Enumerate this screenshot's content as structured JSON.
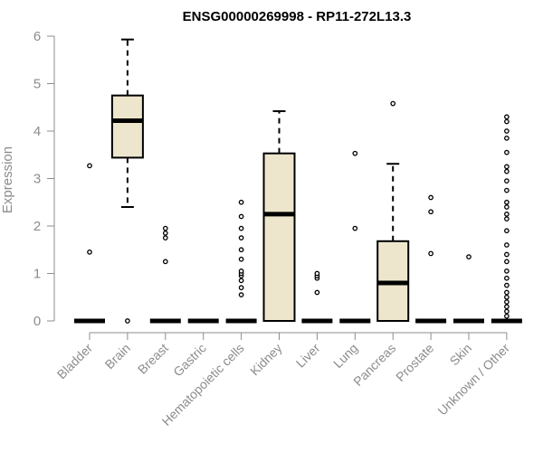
{
  "chart_data": {
    "type": "box",
    "title": "ENSG00000269998 - RP11-272L13.3",
    "xlabel": "",
    "ylabel": "Expression",
    "ylim": [
      0,
      6
    ],
    "yticks": [
      "0",
      "1",
      "2",
      "3",
      "4",
      "5",
      "6"
    ],
    "categories": [
      "Bladder",
      "Brain",
      "Breast",
      "Gastric",
      "Hematopoietic cells",
      "Kidney",
      "Liver",
      "Lung",
      "Pancreas",
      "Prostate",
      "Skin",
      "Unknown / Other"
    ],
    "boxes": [
      {
        "name": "Bladder",
        "min": 0,
        "q1": 0,
        "median": 0,
        "q3": 0,
        "max": 0,
        "outliers": [
          1.45,
          3.27
        ]
      },
      {
        "name": "Brain",
        "min": 2.4,
        "q1": 3.44,
        "median": 4.22,
        "q3": 4.75,
        "max": 5.93,
        "outliers": [
          0
        ]
      },
      {
        "name": "Breast",
        "min": 0,
        "q1": 0,
        "median": 0,
        "q3": 0,
        "max": 0,
        "outliers": [
          1.25,
          1.75,
          1.85,
          1.95
        ]
      },
      {
        "name": "Gastric",
        "min": 0,
        "q1": 0,
        "median": 0,
        "q3": 0,
        "max": 0,
        "outliers": []
      },
      {
        "name": "Hematopoietic cells",
        "min": 0,
        "q1": 0,
        "median": 0,
        "q3": 0,
        "max": 0,
        "outliers": [
          0.55,
          0.7,
          0.85,
          0.95,
          1.0,
          1.05,
          1.3,
          1.5,
          1.75,
          1.95,
          2.2,
          2.5
        ]
      },
      {
        "name": "Kidney",
        "min": 0,
        "q1": 0,
        "median": 2.25,
        "q3": 3.53,
        "max": 4.42,
        "outliers": []
      },
      {
        "name": "Liver",
        "min": 0,
        "q1": 0,
        "median": 0,
        "q3": 0,
        "max": 0,
        "outliers": [
          0.6,
          0.9,
          0.95,
          1.0
        ]
      },
      {
        "name": "Lung",
        "min": 0,
        "q1": 0,
        "median": 0,
        "q3": 0,
        "max": 0,
        "outliers": [
          1.95,
          3.53
        ]
      },
      {
        "name": "Pancreas",
        "min": 0,
        "q1": 0,
        "median": 0.8,
        "q3": 1.68,
        "max": 3.31,
        "outliers": [
          4.58
        ]
      },
      {
        "name": "Prostate",
        "min": 0,
        "q1": 0,
        "median": 0,
        "q3": 0,
        "max": 0,
        "outliers": [
          1.42,
          2.3,
          2.6
        ]
      },
      {
        "name": "Skin",
        "min": 0,
        "q1": 0,
        "median": 0,
        "q3": 0,
        "max": 0,
        "outliers": [
          1.35
        ]
      },
      {
        "name": "Unknown / Other",
        "min": 0,
        "q1": 0,
        "median": 0,
        "q3": 0,
        "max": 0,
        "outliers": [
          0.1,
          0.2,
          0.3,
          0.4,
          0.5,
          0.6,
          0.75,
          0.9,
          1.05,
          1.25,
          1.4,
          1.6,
          1.9,
          2.15,
          2.25,
          2.4,
          2.5,
          2.75,
          2.95,
          3.15,
          3.25,
          3.55,
          3.85,
          4.0,
          4.2,
          4.3
        ]
      }
    ],
    "colors": {
      "box_fill": "#ede6cd",
      "box_stroke": "#000000",
      "axis": "#8c8c8c",
      "text": "#8c8c8c"
    }
  }
}
